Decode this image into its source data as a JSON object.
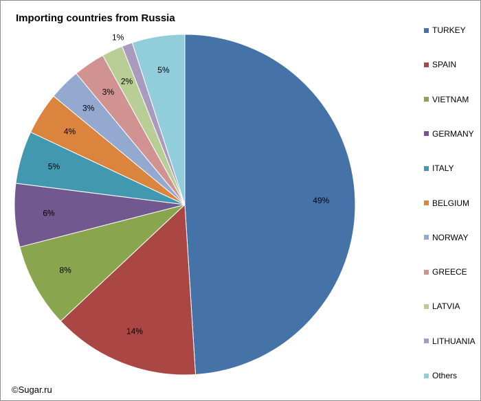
{
  "chart_data": {
    "type": "pie",
    "title": "Importing countries from Russia",
    "start_angle_deg": 0,
    "direction": "clockwise",
    "labels_inside": true,
    "legend_position": "right",
    "slices": [
      {
        "name": "TURKEY",
        "value": 49,
        "label": "49%",
        "color": "#4572A7"
      },
      {
        "name": "SPAIN",
        "value": 14,
        "label": "14%",
        "color": "#AA4643"
      },
      {
        "name": "VIETNAM",
        "value": 8,
        "label": "8%",
        "color": "#89A54E"
      },
      {
        "name": "GERMANY",
        "value": 6,
        "label": "6%",
        "color": "#71588F"
      },
      {
        "name": "ITALY",
        "value": 5,
        "label": "5%",
        "color": "#4198AF"
      },
      {
        "name": "BELGIUM",
        "value": 4,
        "label": "4%",
        "color": "#DB843D"
      },
      {
        "name": "NORWAY",
        "value": 3,
        "label": "3%",
        "color": "#93A9CF"
      },
      {
        "name": "GREECE",
        "value": 3,
        "label": "3%",
        "color": "#D19392"
      },
      {
        "name": "LATVIA",
        "value": 2,
        "label": "2%",
        "color": "#B9CD96"
      },
      {
        "name": "LITHUANIA",
        "value": 1,
        "label": "1%",
        "color": "#A99BBD"
      },
      {
        "name": "Others",
        "value": 5,
        "label": "5%",
        "color": "#92CDDC"
      }
    ]
  },
  "source_note": "©Sugar.ru"
}
